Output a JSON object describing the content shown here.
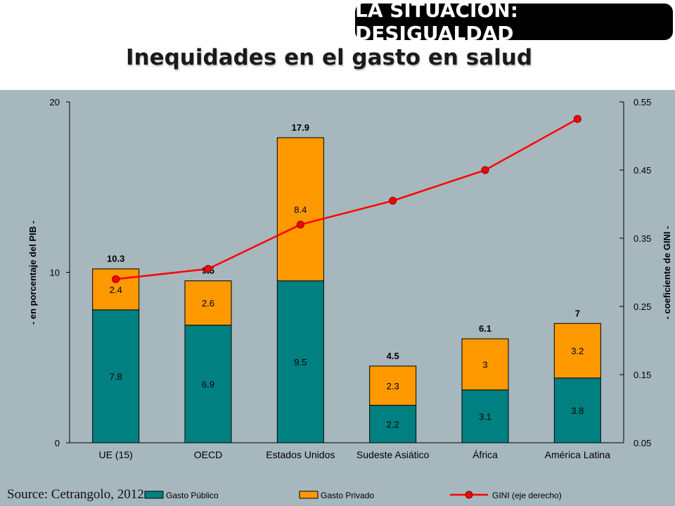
{
  "header": {
    "badge": "LA SITUACIÓN: DESIGUALDAD",
    "title": "Inequidades en el gasto en salud"
  },
  "source": "Source: Cetrangolo, 2012",
  "colors": {
    "public": "#008080",
    "private": "#ff9900",
    "gini": "#ff0000",
    "panel": "#a6b7be"
  },
  "chart_data": {
    "type": "bar",
    "stacked": true,
    "categories": [
      "UE (15)",
      "OECD",
      "Estados Unidos",
      "Sudeste Asiático",
      "África",
      "América Latina"
    ],
    "series": [
      {
        "name": "Gasto Público",
        "values": [
          7.8,
          6.9,
          9.5,
          2.2,
          3.1,
          3.8
        ]
      },
      {
        "name": "Gasto Privado",
        "values": [
          2.4,
          2.6,
          8.4,
          2.3,
          3.0,
          3.2
        ]
      }
    ],
    "totals": [
      10.3,
      9.5,
      17.9,
      4.5,
      6.1,
      7.0
    ],
    "line_series": {
      "name": "GINI (eje derecho)",
      "axis": "right",
      "values": [
        0.29,
        0.305,
        0.37,
        0.405,
        0.45,
        0.525
      ]
    },
    "ylabel": "- en porcentaje del PIB -",
    "ylabel_right": "- coeficiente de GINI -",
    "ylim": [
      0,
      20
    ],
    "yticks": [
      "0",
      "10",
      "20"
    ],
    "ylim_right": [
      0.05,
      0.55
    ],
    "yticks_right": [
      "0.05",
      "0.15",
      "0.25",
      "0.35",
      "0.45",
      "0.55"
    ],
    "legend_position": "bottom",
    "grid": false
  }
}
